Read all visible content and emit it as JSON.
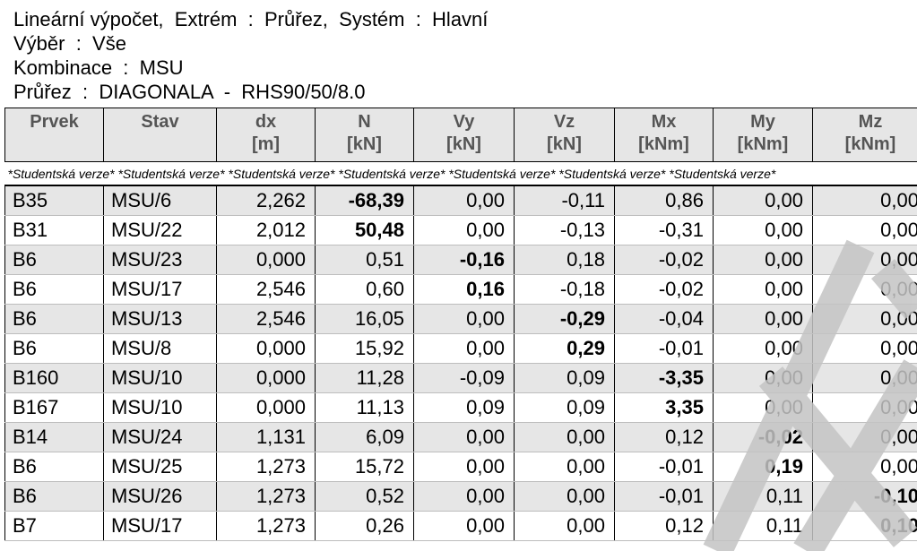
{
  "header": {
    "line1": "Lineární výpočet,  Extrém  :  Průřez,  Systém  :  Hlavní",
    "line2": "Výběr  :  Vše",
    "line3": "Kombinace  :  MSU",
    "line4": "Průřez  :  DIAGONALA  -  RHS90/50/8.0"
  },
  "table": {
    "columns": [
      {
        "name": "Prvek",
        "unit": ""
      },
      {
        "name": "Stav",
        "unit": ""
      },
      {
        "name": "dx",
        "unit": "[m]"
      },
      {
        "name": "N",
        "unit": "[kN]"
      },
      {
        "name": "Vy",
        "unit": "[kN]"
      },
      {
        "name": "Vz",
        "unit": "[kN]"
      },
      {
        "name": "Mx",
        "unit": "[kNm]"
      },
      {
        "name": "My",
        "unit": "[kNm]"
      },
      {
        "name": "Mz",
        "unit": "[kNm]"
      }
    ],
    "student_label": "*Studentská verze*",
    "rows": [
      {
        "cells": [
          "B35",
          "MSU/6",
          "2,262",
          "-68,39",
          "0,00",
          "-0,11",
          "0,86",
          "0,00",
          "0,00"
        ],
        "bold": 3
      },
      {
        "cells": [
          "B31",
          "MSU/22",
          "2,012",
          "50,48",
          "0,00",
          "-0,13",
          "-0,31",
          "0,00",
          "0,00"
        ],
        "bold": 3
      },
      {
        "cells": [
          "B6",
          "MSU/23",
          "0,000",
          "0,51",
          "-0,16",
          "0,18",
          "-0,02",
          "0,00",
          "0,00"
        ],
        "bold": 4
      },
      {
        "cells": [
          "B6",
          "MSU/17",
          "2,546",
          "0,60",
          "0,16",
          "-0,18",
          "-0,02",
          "0,00",
          "0,00"
        ],
        "bold": 4
      },
      {
        "cells": [
          "B6",
          "MSU/13",
          "2,546",
          "16,05",
          "0,00",
          "-0,29",
          "-0,04",
          "0,00",
          "0,00"
        ],
        "bold": 5
      },
      {
        "cells": [
          "B6",
          "MSU/8",
          "0,000",
          "15,92",
          "0,00",
          "0,29",
          "-0,01",
          "0,00",
          "0,00"
        ],
        "bold": 5
      },
      {
        "cells": [
          "B160",
          "MSU/10",
          "0,000",
          "11,28",
          "-0,09",
          "0,09",
          "-3,35",
          "0,00",
          "0,00"
        ],
        "bold": 6
      },
      {
        "cells": [
          "B167",
          "MSU/10",
          "0,000",
          "11,13",
          "0,09",
          "0,09",
          "3,35",
          "0,00",
          "0,00"
        ],
        "bold": 6
      },
      {
        "cells": [
          "B14",
          "MSU/24",
          "1,131",
          "6,09",
          "0,00",
          "0,00",
          "0,12",
          "-0,02",
          "0,00"
        ],
        "bold": 7
      },
      {
        "cells": [
          "B6",
          "MSU/25",
          "1,273",
          "15,72",
          "0,00",
          "0,00",
          "-0,01",
          "0,19",
          "0,00"
        ],
        "bold": 7
      },
      {
        "cells": [
          "B6",
          "MSU/26",
          "1,273",
          "0,52",
          "0,00",
          "0,00",
          "-0,01",
          "0,11",
          "-0,10"
        ],
        "bold": 8
      },
      {
        "cells": [
          "B7",
          "MSU/17",
          "1,273",
          "0,26",
          "0,00",
          "0,00",
          "0,12",
          "0,11",
          "0,10"
        ],
        "bold": 8
      }
    ]
  },
  "watermark_color": "#c4c4c4"
}
